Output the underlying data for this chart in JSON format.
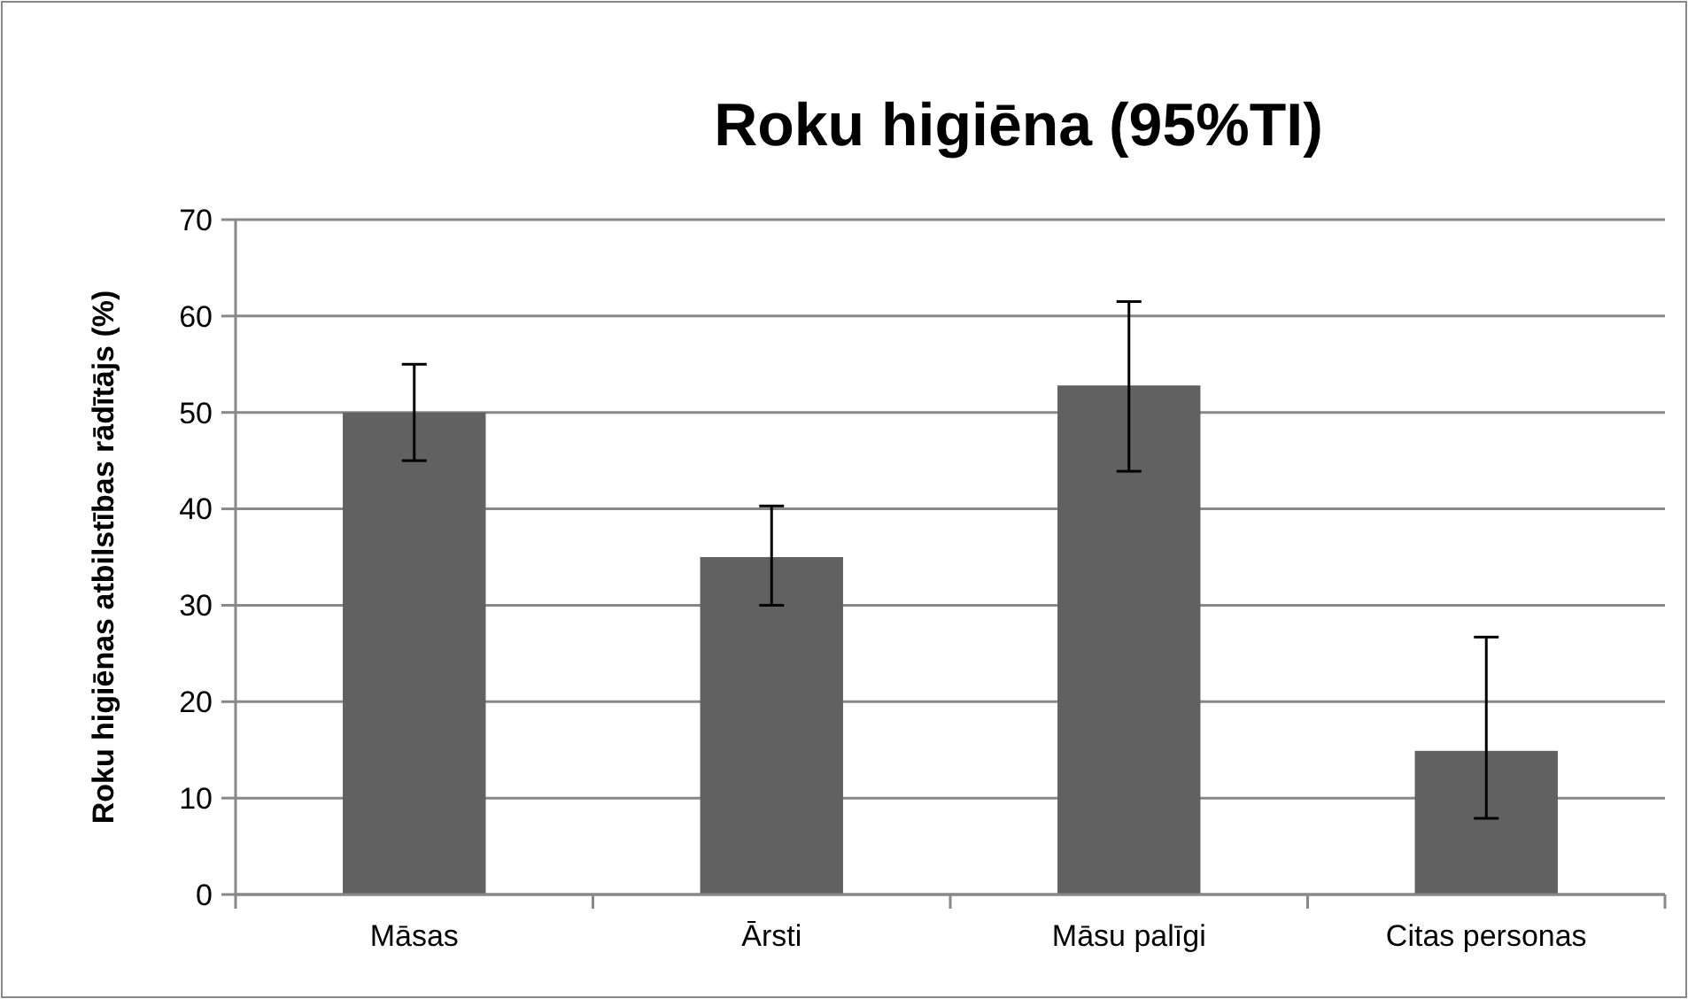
{
  "chart_data": {
    "type": "bar",
    "title": "Roku higiēna (95%TI)",
    "ylabel": "Roku higiēnas atbilstības rādītājs (%)",
    "categories": [
      "Māsas",
      "Ārsti",
      "Māsu palīgi",
      "Citas personas"
    ],
    "values": [
      50,
      35,
      52.8,
      14.9
    ],
    "errors": [
      [
        45,
        55
      ],
      [
        30,
        40.3
      ],
      [
        43.9,
        61.5
      ],
      [
        7.9,
        26.7
      ]
    ],
    "color": "#616161",
    "ylim": [
      0,
      70
    ],
    "yticks": [
      0,
      10,
      20,
      30,
      40,
      50,
      60,
      70
    ],
    "grid": "y"
  }
}
